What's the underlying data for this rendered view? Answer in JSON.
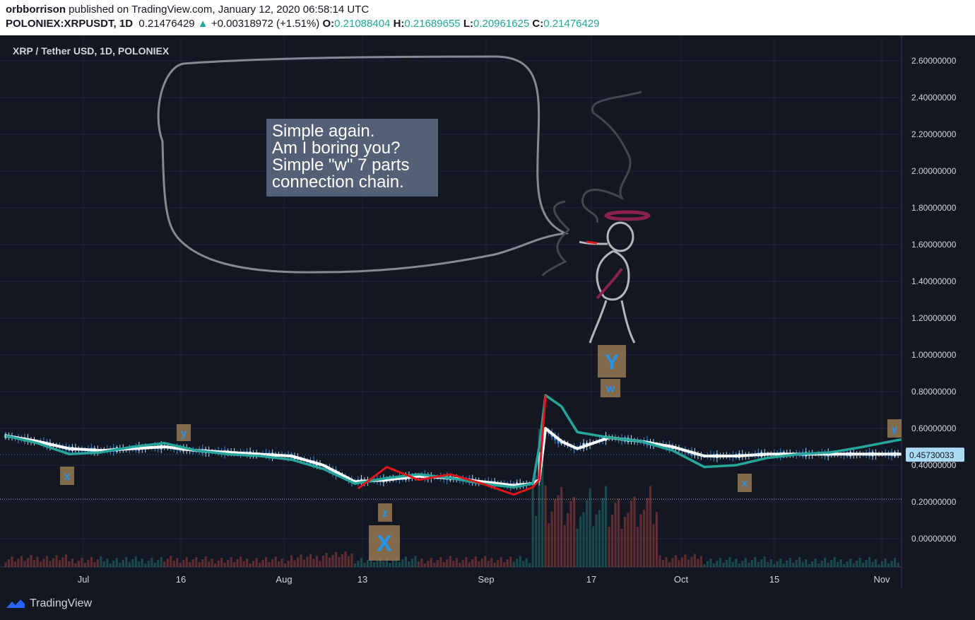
{
  "header": {
    "publisher": "orbborrison",
    "published_text": "published on TradingView.com, January 12, 2020 06:58:14 UTC",
    "symbol": "POLONIEX:XRPUSDT, 1D",
    "last": "0.21476429",
    "change_arrow": "▲",
    "change": "+0.00318972 (+1.51%)",
    "o_label": "O:",
    "o_value": "0.21088404",
    "h_label": "H:",
    "h_value": "0.21689655",
    "l_label": "L:",
    "l_value": "0.20961625",
    "c_label": "C:",
    "c_value": "0.21476429"
  },
  "chart_data": {
    "type": "line",
    "title": "XRP / Tether USD, 1D, POLONIEX",
    "x_tick_labels": [
      "Jul",
      "16",
      "Aug",
      "13",
      "Sep",
      "17",
      "Oct",
      "15",
      "Nov"
    ],
    "ylim": [
      -0.12,
      2.7
    ],
    "y_ticks": [
      0.0,
      0.2,
      0.4,
      0.6,
      0.8,
      1.0,
      1.2,
      1.4,
      1.6,
      1.8,
      2.0,
      2.2,
      2.4,
      2.6
    ],
    "y_tick_labels": [
      "0.00000000",
      "0.20000000",
      "0.40000000",
      "0.60000000",
      "0.80000000",
      "1.00000000",
      "1.20000000",
      "1.40000000",
      "1.60000000",
      "1.80000000",
      "2.00000000",
      "2.20000000",
      "2.40000000",
      "2.60000000"
    ],
    "x_day": [
      0,
      10,
      20,
      30,
      40,
      50,
      60,
      70,
      80,
      90,
      100,
      110,
      120,
      130,
      140,
      150,
      160,
      166,
      168,
      170,
      175,
      180,
      190,
      200,
      210,
      220,
      230,
      240,
      250,
      260,
      270,
      282
    ],
    "series": [
      {
        "values": [
          0.56,
          0.53,
          0.49,
          0.48,
          0.49,
          0.5,
          0.48,
          0.47,
          0.46,
          0.45,
          0.4,
          0.31,
          0.32,
          0.34,
          0.33,
          0.31,
          0.29,
          0.3,
          0.32,
          0.6,
          0.53,
          0.49,
          0.55,
          0.53,
          0.5,
          0.45,
          0.45,
          0.46,
          0.46,
          0.46,
          0.46,
          0.46
        ],
        "color": "#ffffff"
      },
      {
        "values": [
          0.56,
          0.52,
          0.46,
          0.47,
          0.5,
          0.52,
          0.48,
          0.46,
          0.45,
          0.43,
          0.38,
          0.3,
          0.33,
          0.35,
          0.33,
          0.3,
          0.28,
          0.3,
          0.5,
          0.78,
          0.72,
          0.58,
          0.55,
          0.53,
          0.48,
          0.39,
          0.4,
          0.44,
          0.46,
          0.47,
          0.5,
          0.54
        ],
        "color": "#26a69a"
      },
      {
        "values": [
          null,
          null,
          null,
          null,
          null,
          null,
          null,
          null,
          null,
          null,
          null,
          0.26,
          0.39,
          0.32,
          0.35,
          0.3,
          0.24,
          0.28,
          0.32,
          0.78,
          null,
          null,
          null,
          null,
          null,
          null,
          null,
          null,
          null,
          null,
          null,
          null
        ],
        "color": "#e0161a"
      }
    ],
    "last_price_label": "0.45730033",
    "dotted_level": 0.2147,
    "annotations": {
      "speech_bubble": [
        "Simple again.",
        "Am I boring you?",
        "Simple \"w\" 7 parts",
        "connection chain."
      ],
      "wave_labels": [
        "x",
        "y",
        "z",
        "X",
        "w",
        "Y",
        "x",
        "y"
      ]
    }
  },
  "footer": {
    "brand": "TradingView",
    "logo_icon": "tradingview-logo-icon"
  }
}
